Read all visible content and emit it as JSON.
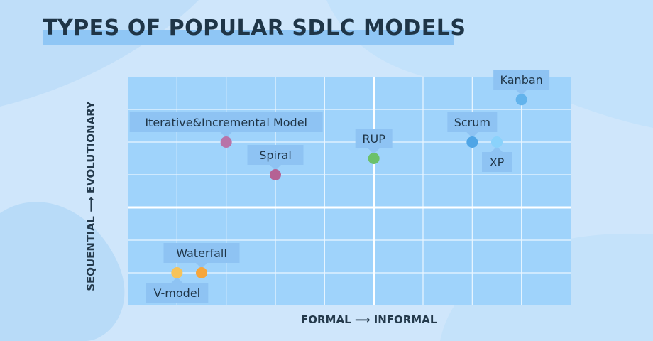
{
  "title": "TYPES OF POPULAR SDLC MODELS",
  "chart_data": {
    "type": "scatter",
    "title": "TYPES OF POPULAR SDLC MODELS",
    "xlabel": "FORMAL",
    "xlabel_end": "INFORMAL",
    "ylabel": "SEQUENTIAL",
    "ylabel_end": "EVOLUTIONARY",
    "xlim": [
      0,
      9
    ],
    "ylim": [
      0,
      7
    ],
    "grid": true,
    "points": [
      {
        "label": "Kanban",
        "x": 8.0,
        "y": 6.3,
        "color": "#62b3ec"
      },
      {
        "label": "Iterative&Incremental Model",
        "x": 2.0,
        "y": 5.0,
        "color": "#b873a8"
      },
      {
        "label": "Scrum",
        "x": 7.0,
        "y": 5.0,
        "color": "#4fa5e6"
      },
      {
        "label": "XP",
        "x": 7.5,
        "y": 5.0,
        "color": "#8ad2fb"
      },
      {
        "label": "Spiral",
        "x": 3.0,
        "y": 4.0,
        "color": "#b56294"
      },
      {
        "label": "RUP",
        "x": 5.0,
        "y": 4.5,
        "color": "#6cc16a"
      },
      {
        "label": "Waterfall",
        "x": 1.5,
        "y": 1.0,
        "color": "#f7a63b"
      },
      {
        "label": "V-model",
        "x": 1.0,
        "y": 1.0,
        "color": "#f6c35a"
      }
    ]
  }
}
